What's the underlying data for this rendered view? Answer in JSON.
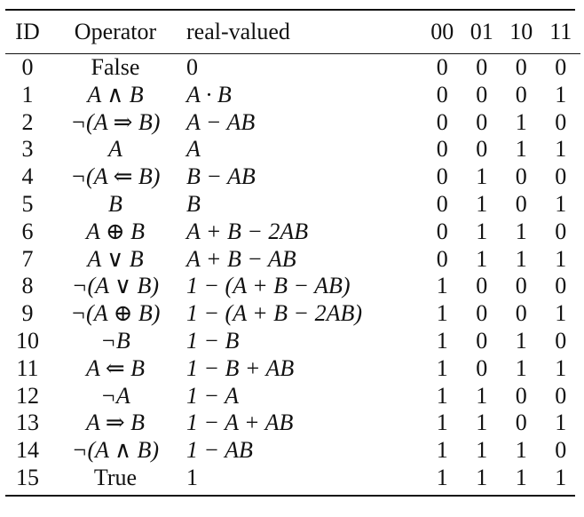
{
  "table": {
    "headers": [
      "ID",
      "Operator",
      "real-valued",
      "00",
      "01",
      "10",
      "11"
    ],
    "rows": [
      {
        "id": "0",
        "operator": "False",
        "real_valued": "0",
        "b00": "0",
        "b01": "0",
        "b10": "0",
        "b11": "0"
      },
      {
        "id": "1",
        "operator": "A ∧ B",
        "real_valued": "A · B",
        "b00": "0",
        "b01": "0",
        "b10": "0",
        "b11": "1"
      },
      {
        "id": "2",
        "operator": "¬(A ⇒ B)",
        "real_valued": "A − AB",
        "b00": "0",
        "b01": "0",
        "b10": "1",
        "b11": "0"
      },
      {
        "id": "3",
        "operator": "A",
        "real_valued": "A",
        "b00": "0",
        "b01": "0",
        "b10": "1",
        "b11": "1"
      },
      {
        "id": "4",
        "operator": "¬(A ⇐ B)",
        "real_valued": "B − AB",
        "b00": "0",
        "b01": "1",
        "b10": "0",
        "b11": "0"
      },
      {
        "id": "5",
        "operator": "B",
        "real_valued": "B",
        "b00": "0",
        "b01": "1",
        "b10": "0",
        "b11": "1"
      },
      {
        "id": "6",
        "operator": "A ⊕ B",
        "real_valued": "A + B − 2AB",
        "b00": "0",
        "b01": "1",
        "b10": "1",
        "b11": "0"
      },
      {
        "id": "7",
        "operator": "A ∨ B",
        "real_valued": "A + B − AB",
        "b00": "0",
        "b01": "1",
        "b10": "1",
        "b11": "1"
      },
      {
        "id": "8",
        "operator": "¬(A ∨ B)",
        "real_valued": "1 − (A + B − AB)",
        "b00": "1",
        "b01": "0",
        "b10": "0",
        "b11": "0"
      },
      {
        "id": "9",
        "operator": "¬(A ⊕ B)",
        "real_valued": "1 − (A + B − 2AB)",
        "b00": "1",
        "b01": "0",
        "b10": "0",
        "b11": "1"
      },
      {
        "id": "10",
        "operator": "¬B",
        "real_valued": "1 − B",
        "b00": "1",
        "b01": "0",
        "b10": "1",
        "b11": "0"
      },
      {
        "id": "11",
        "operator": "A ⇐ B",
        "real_valued": "1 − B + AB",
        "b00": "1",
        "b01": "0",
        "b10": "1",
        "b11": "1"
      },
      {
        "id": "12",
        "operator": "¬A",
        "real_valued": "1 − A",
        "b00": "1",
        "b01": "1",
        "b10": "0",
        "b11": "0"
      },
      {
        "id": "13",
        "operator": "A ⇒ B",
        "real_valued": "1 − A + AB",
        "b00": "1",
        "b01": "1",
        "b10": "0",
        "b11": "1"
      },
      {
        "id": "14",
        "operator": "¬(A ∧ B)",
        "real_valued": "1 − AB",
        "b00": "1",
        "b01": "1",
        "b10": "1",
        "b11": "0"
      },
      {
        "id": "15",
        "operator": "True",
        "real_valued": "1",
        "b00": "1",
        "b01": "1",
        "b10": "1",
        "b11": "1"
      }
    ]
  }
}
